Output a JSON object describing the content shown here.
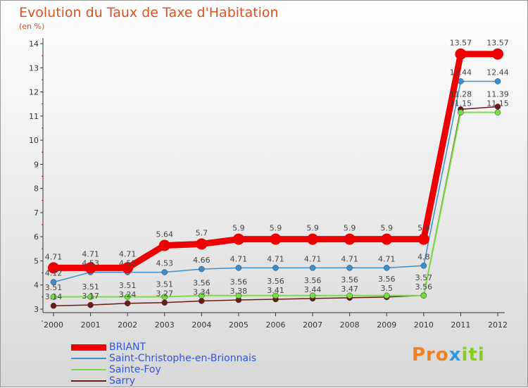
{
  "chart_data": {
    "type": "line",
    "title": "Evolution du Taux de Taxe d'Habitation",
    "ylabel": "(en %)",
    "x": [
      "2000",
      "2001",
      "2002",
      "2003",
      "2004",
      "2005",
      "2006",
      "2007",
      "2008",
      "2009",
      "2010",
      "2011",
      "2012"
    ],
    "ylim": [
      3,
      14
    ],
    "yticks": [
      "3",
      "4",
      "5",
      "6",
      "7",
      "8",
      "9",
      "10",
      "11",
      "12",
      "13",
      "14"
    ],
    "series": [
      {
        "name": "BRIANT",
        "color": "#ee0000",
        "values": [
          4.71,
          4.71,
          4.71,
          5.64,
          5.7,
          5.9,
          5.9,
          5.9,
          5.9,
          5.9,
          5.9,
          13.57,
          13.57
        ]
      },
      {
        "name": "Saint-Christophe-en-Brionnais",
        "color": "#3a8fd0",
        "values": [
          4.12,
          4.53,
          4.53,
          4.53,
          4.66,
          4.71,
          4.71,
          4.71,
          4.71,
          4.71,
          4.8,
          12.44,
          12.44
        ]
      },
      {
        "name": "Sainte-Foy",
        "color": "#77dd44",
        "values": [
          3.51,
          3.51,
          3.51,
          3.51,
          3.56,
          3.56,
          3.56,
          3.56,
          3.56,
          3.56,
          3.56,
          11.15,
          11.15
        ]
      },
      {
        "name": "Sarry",
        "color": "#6b1a1a",
        "values": [
          3.14,
          3.17,
          3.24,
          3.27,
          3.34,
          3.38,
          3.41,
          3.44,
          3.47,
          3.5,
          3.57,
          11.28,
          11.39
        ]
      }
    ]
  },
  "logo": "Proxiti"
}
